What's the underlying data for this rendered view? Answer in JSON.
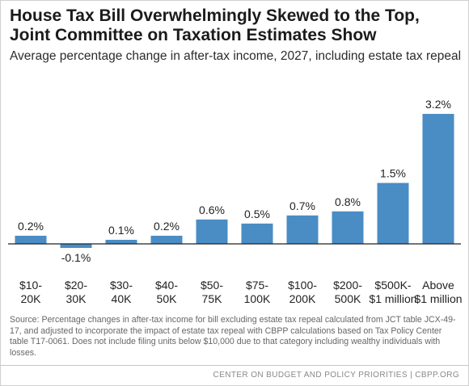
{
  "chart_data": {
    "type": "bar",
    "title": "House Tax Bill Overwhelmingly Skewed to the Top, Joint Committee on Taxation Estimates Show",
    "subtitle": "Average percentage change in after-tax income, 2027, including estate tax repeal",
    "categories": [
      [
        "$10-",
        "20K"
      ],
      [
        "$20-",
        "30K"
      ],
      [
        "$30-",
        "40K"
      ],
      [
        "$40-",
        "50K"
      ],
      [
        "$50-",
        "75K"
      ],
      [
        "$75-",
        "100K"
      ],
      [
        "$100-",
        "200K"
      ],
      [
        "$200-",
        "500K"
      ],
      [
        "$500K-",
        "$1 million"
      ],
      [
        "Above",
        "$1 million"
      ]
    ],
    "values": [
      0.2,
      -0.1,
      0.1,
      0.2,
      0.6,
      0.5,
      0.7,
      0.8,
      1.5,
      3.2
    ],
    "value_labels": [
      "0.2%",
      "-0.1%",
      "0.1%",
      "0.2%",
      "0.6%",
      "0.5%",
      "0.7%",
      "0.8%",
      "1.5%",
      "3.2%"
    ],
    "xlabel": "",
    "ylabel": "",
    "ylim": [
      -0.1,
      3.2
    ],
    "grid": false,
    "bar_color": "#4a8cc4",
    "axis_color": "#222222"
  },
  "source": "Source: Percentage changes in after-tax income for bill excluding estate tax repeal calculated from JCT table JCX-49-17, and adjusted to incorporate the impact of estate tax repeal with CBPP calculations based on Tax Policy Center table T17-0061. Does not include filing units below $10,000 due to that category including wealthy individuals with losses.",
  "footer": "CENTER ON BUDGET AND POLICY PRIORITIES | CBPP.ORG"
}
